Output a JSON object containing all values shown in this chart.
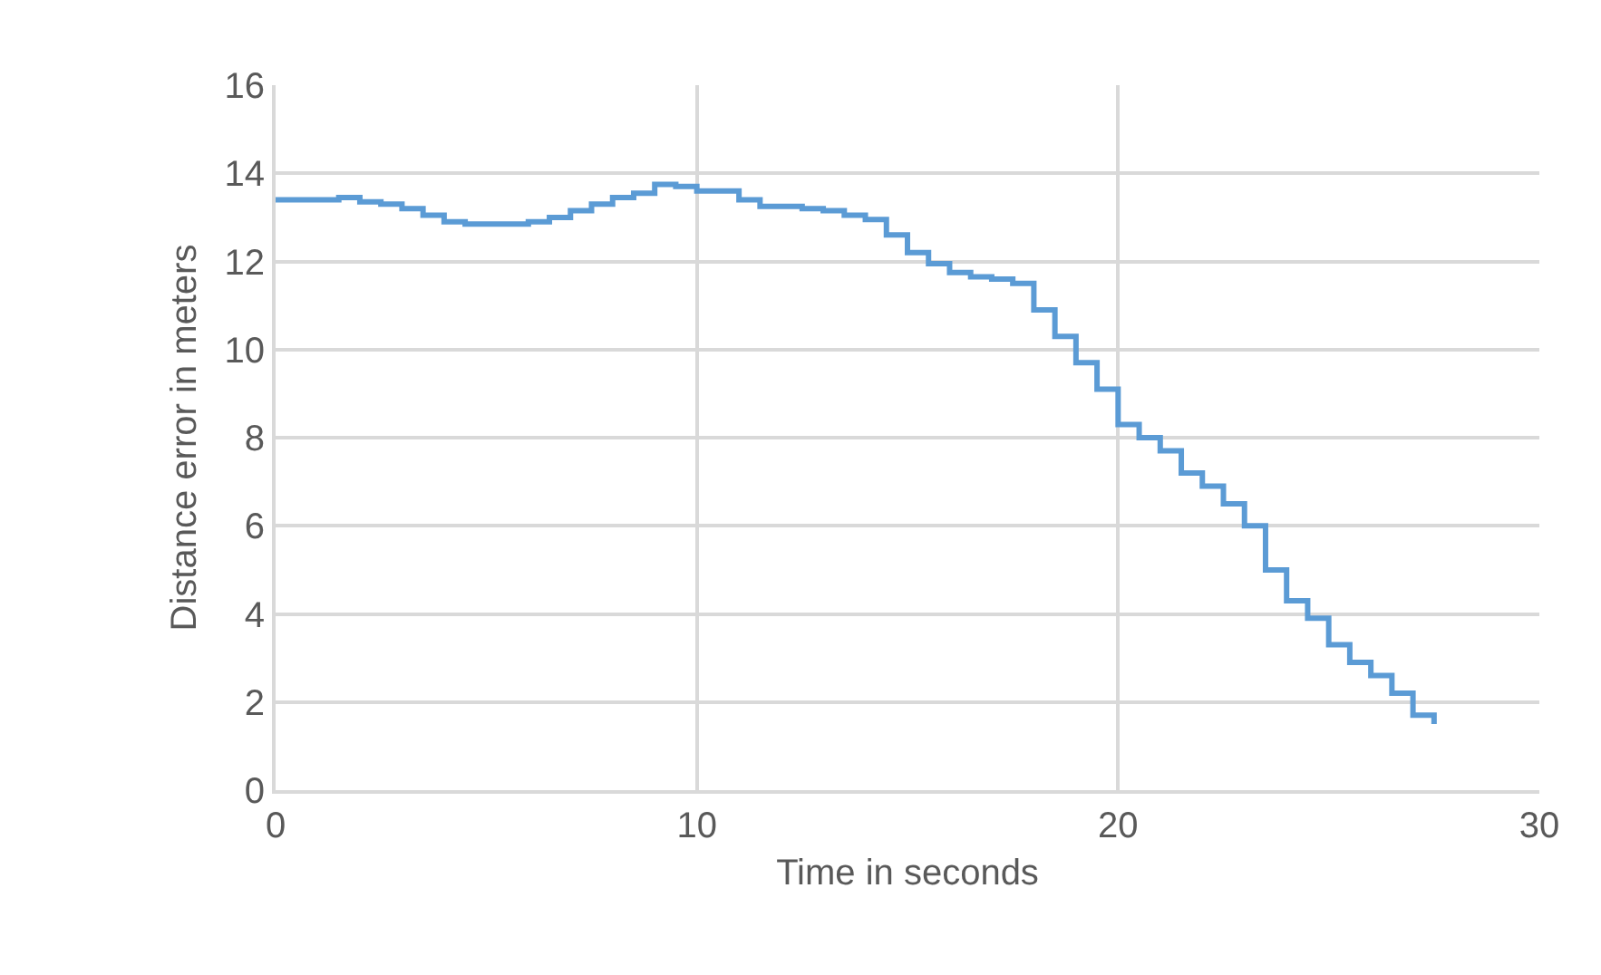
{
  "chart_data": {
    "type": "step",
    "xlabel": "Time in seconds",
    "ylabel": "Distance error in meters",
    "x": [
      0,
      0.5,
      1,
      1.5,
      2,
      2.5,
      3,
      3.5,
      4,
      4.5,
      5,
      5.5,
      6,
      6.5,
      7,
      7.5,
      8,
      8.5,
      9,
      9.5,
      10,
      10.5,
      11,
      11.5,
      12,
      12.5,
      13,
      13.5,
      14,
      14.5,
      15,
      15.5,
      16,
      16.5,
      17,
      17.5,
      18,
      18.5,
      19,
      19.5,
      20,
      20.5,
      21,
      21.5,
      22,
      22.5,
      23,
      23.5,
      24,
      24.5,
      25,
      25.5,
      26,
      26.5,
      27,
      27.5
    ],
    "series": [
      {
        "color": "#5b9bd5",
        "values": [
          13.4,
          13.4,
          13.4,
          13.45,
          13.35,
          13.3,
          13.2,
          13.05,
          12.9,
          12.85,
          12.85,
          12.85,
          12.9,
          13.0,
          13.15,
          13.3,
          13.45,
          13.55,
          13.75,
          13.7,
          13.6,
          13.6,
          13.4,
          13.25,
          13.25,
          13.2,
          13.15,
          13.05,
          12.95,
          12.6,
          12.2,
          11.95,
          11.75,
          11.65,
          11.6,
          11.5,
          10.9,
          10.3,
          9.7,
          9.1,
          8.3,
          8.0,
          7.7,
          7.2,
          6.9,
          6.5,
          6.0,
          5.0,
          4.3,
          3.9,
          3.3,
          2.9,
          2.6,
          2.2,
          1.7,
          1.5
        ]
      }
    ],
    "xlim": [
      0,
      30
    ],
    "xticks": [
      0,
      10,
      20,
      30
    ],
    "ylim": [
      0,
      16
    ],
    "yticks": [
      0,
      2,
      4,
      6,
      8,
      10,
      12,
      14,
      16
    ],
    "grid": true,
    "line_style": "solid"
  }
}
